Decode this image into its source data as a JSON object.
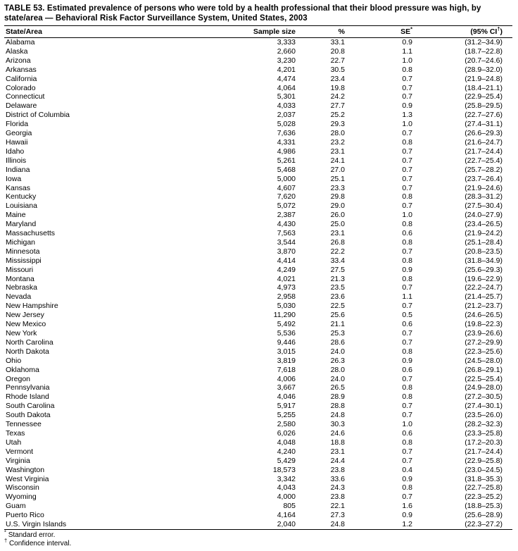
{
  "title": "TABLE 53. Estimated prevalence of persons who were told by a health professional that their blood pressure was high, by state/area — Behavioral Risk Factor Surveillance System, United States, 2003",
  "table": {
    "columns": [
      {
        "key": "state-area",
        "text": "State/Area"
      },
      {
        "key": "sample-size",
        "text": "Sample size"
      },
      {
        "key": "percent",
        "text": "%"
      },
      {
        "key": "se",
        "text": "SE",
        "sup": "*"
      },
      {
        "key": "ci",
        "text": "(95% CI",
        "sup": "†",
        "post": ")"
      }
    ],
    "rows": [
      [
        "Alabama",
        "3,333",
        "33.1",
        "0.9",
        "(31.2–34.9)"
      ],
      [
        "Alaska",
        "2,660",
        "20.8",
        "1.1",
        "(18.7–22.8)"
      ],
      [
        "Arizona",
        "3,230",
        "22.7",
        "1.0",
        "(20.7–24.6)"
      ],
      [
        "Arkansas",
        "4,201",
        "30.5",
        "0.8",
        "(28.9–32.0)"
      ],
      [
        "California",
        "4,474",
        "23.4",
        "0.7",
        "(21.9–24.8)"
      ],
      [
        "Colorado",
        "4,064",
        "19.8",
        "0.7",
        "(18.4–21.1)"
      ],
      [
        "Connecticut",
        "5,301",
        "24.2",
        "0.7",
        "(22.9–25.4)"
      ],
      [
        "Delaware",
        "4,033",
        "27.7",
        "0.9",
        "(25.8–29.5)"
      ],
      [
        "District of Columbia",
        "2,037",
        "25.2",
        "1.3",
        "(22.7–27.6)"
      ],
      [
        "Florida",
        "5,028",
        "29.3",
        "1.0",
        "(27.4–31.1)"
      ],
      [
        "Georgia",
        "7,636",
        "28.0",
        "0.7",
        "(26.6–29.3)"
      ],
      [
        "Hawaii",
        "4,331",
        "23.2",
        "0.8",
        "(21.6–24.7)"
      ],
      [
        "Idaho",
        "4,986",
        "23.1",
        "0.7",
        "(21.7–24.4)"
      ],
      [
        "Illinois",
        "5,261",
        "24.1",
        "0.7",
        "(22.7–25.4)"
      ],
      [
        "Indiana",
        "5,468",
        "27.0",
        "0.7",
        "(25.7–28.2)"
      ],
      [
        "Iowa",
        "5,000",
        "25.1",
        "0.7",
        "(23.7–26.4)"
      ],
      [
        "Kansas",
        "4,607",
        "23.3",
        "0.7",
        "(21.9–24.6)"
      ],
      [
        "Kentucky",
        "7,620",
        "29.8",
        "0.8",
        "(28.3–31.2)"
      ],
      [
        "Louisiana",
        "5,072",
        "29.0",
        "0.7",
        "(27.5–30.4)"
      ],
      [
        "Maine",
        "2,387",
        "26.0",
        "1.0",
        "(24.0–27.9)"
      ],
      [
        "Maryland",
        "4,430",
        "25.0",
        "0.8",
        "(23.4–26.5)"
      ],
      [
        "Massachusetts",
        "7,563",
        "23.1",
        "0.6",
        "(21.9–24.2)"
      ],
      [
        "Michigan",
        "3,544",
        "26.8",
        "0.8",
        "(25.1–28.4)"
      ],
      [
        "Minnesota",
        "3,870",
        "22.2",
        "0.7",
        "(20.8–23.5)"
      ],
      [
        "Mississippi",
        "4,414",
        "33.4",
        "0.8",
        "(31.8–34.9)"
      ],
      [
        "Missouri",
        "4,249",
        "27.5",
        "0.9",
        "(25.6–29.3)"
      ],
      [
        "Montana",
        "4,021",
        "21.3",
        "0.8",
        "(19.6–22.9)"
      ],
      [
        "Nebraska",
        "4,973",
        "23.5",
        "0.7",
        "(22.2–24.7)"
      ],
      [
        "Nevada",
        "2,958",
        "23.6",
        "1.1",
        "(21.4–25.7)"
      ],
      [
        "New Hampshire",
        "5,030",
        "22.5",
        "0.7",
        "(21.2–23.7)"
      ],
      [
        "New Jersey",
        "11,290",
        "25.6",
        "0.5",
        "(24.6–26.5)"
      ],
      [
        "New Mexico",
        "5,492",
        "21.1",
        "0.6",
        "(19.8–22.3)"
      ],
      [
        "New York",
        "5,536",
        "25.3",
        "0.7",
        "(23.9–26.6)"
      ],
      [
        "North Carolina",
        "9,446",
        "28.6",
        "0.7",
        "(27.2–29.9)"
      ],
      [
        "North Dakota",
        "3,015",
        "24.0",
        "0.8",
        "(22.3–25.6)"
      ],
      [
        "Ohio",
        "3,819",
        "26.3",
        "0.9",
        "(24.5–28.0)"
      ],
      [
        "Oklahoma",
        "7,618",
        "28.0",
        "0.6",
        "(26.8–29.1)"
      ],
      [
        "Oregon",
        "4,006",
        "24.0",
        "0.7",
        "(22.5–25.4)"
      ],
      [
        "Pennsylvania",
        "3,667",
        "26.5",
        "0.8",
        "(24.9–28.0)"
      ],
      [
        "Rhode Island",
        "4,046",
        "28.9",
        "0.8",
        "(27.2–30.5)"
      ],
      [
        "South Carolina",
        "5,917",
        "28.8",
        "0.7",
        "(27.4–30.1)"
      ],
      [
        "South Dakota",
        "5,255",
        "24.8",
        "0.7",
        "(23.5–26.0)"
      ],
      [
        "Tennessee",
        "2,580",
        "30.3",
        "1.0",
        "(28.2–32.3)"
      ],
      [
        "Texas",
        "6,026",
        "24.6",
        "0.6",
        "(23.3–25.8)"
      ],
      [
        "Utah",
        "4,048",
        "18.8",
        "0.8",
        "(17.2–20.3)"
      ],
      [
        "Vermont",
        "4,240",
        "23.1",
        "0.7",
        "(21.7–24.4)"
      ],
      [
        "Virginia",
        "5,429",
        "24.4",
        "0.7",
        "(22.9–25.8)"
      ],
      [
        "Washington",
        "18,573",
        "23.8",
        "0.4",
        "(23.0–24.5)"
      ],
      [
        "West Virginia",
        "3,342",
        "33.6",
        "0.9",
        "(31.8–35.3)"
      ],
      [
        "Wisconsin",
        "4,043",
        "24.3",
        "0.8",
        "(22.7–25.8)"
      ],
      [
        "Wyoming",
        "4,000",
        "23.8",
        "0.7",
        "(22.3–25.2)"
      ],
      [
        "Guam",
        "805",
        "22.1",
        "1.6",
        "(18.8–25.3)"
      ],
      [
        "Puerto Rico",
        "4,164",
        "27.3",
        "0.9",
        "(25.6–28.9)"
      ],
      [
        "U.S. Virgin Islands",
        "2,040",
        "24.8",
        "1.2",
        "(22.3–27.2)"
      ]
    ]
  },
  "footnotes": [
    {
      "marker": "*",
      "text": "Standard error."
    },
    {
      "marker": "†",
      "text": "Confidence interval."
    }
  ],
  "colors": {
    "text": "#000000",
    "background": "#ffffff",
    "rule": "#000000"
  }
}
